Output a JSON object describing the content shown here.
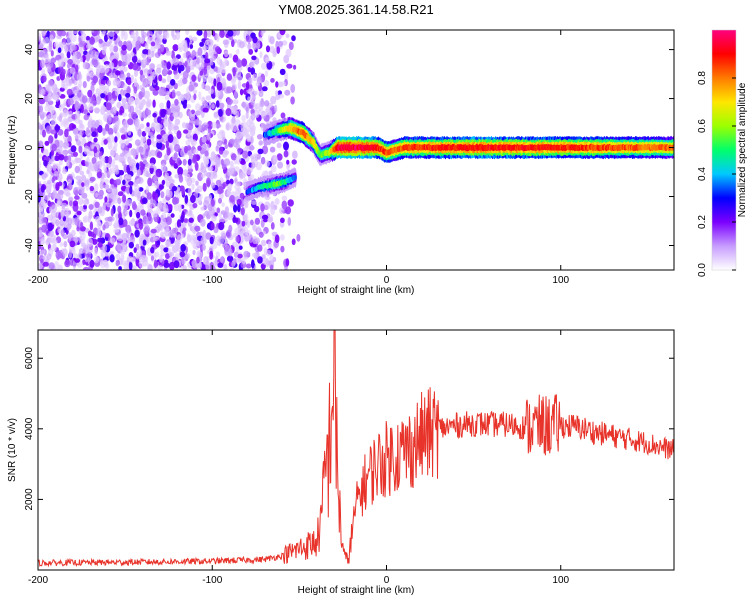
{
  "title": "YM08.2025.361.14.58.R21",
  "chart_data": [
    {
      "type": "heatmap",
      "title": "YM08.2025.361.14.58.R21",
      "xlabel": "Height of straight line (km)",
      "ylabel": "Frequency (Hz)",
      "xlim": [
        -200,
        165
      ],
      "ylim": [
        -50,
        48
      ],
      "x_ticks": [
        -200,
        -100,
        0,
        100
      ],
      "y_ticks": [
        -40,
        -20,
        0,
        20,
        40
      ],
      "colorbar": {
        "label": "Normalized spectral amplitude",
        "range": [
          0.0,
          1.0
        ],
        "ticks": [
          0.0,
          0.2,
          0.4,
          0.6,
          0.8
        ],
        "colormap": [
          "#ffffff",
          "#c79cff",
          "#7b00ff",
          "#0000ff",
          "#00c8ff",
          "#00ff6a",
          "#9cff00",
          "#ffe600",
          "#ff7a00",
          "#ff0000",
          "#ff0080"
        ]
      },
      "noise_region": {
        "x_range": [
          -200,
          -60
        ],
        "y_range": [
          -50,
          48
        ],
        "amplitude_range": [
          0.05,
          0.25
        ]
      },
      "signal_track": [
        {
          "x": -70,
          "y": 5,
          "amp": 0.3
        },
        {
          "x": -62,
          "y": 7,
          "amp": 0.55
        },
        {
          "x": -55,
          "y": 8,
          "amp": 0.75
        },
        {
          "x": -48,
          "y": 6,
          "amp": 0.85
        },
        {
          "x": -42,
          "y": 2,
          "amp": 0.7
        },
        {
          "x": -38,
          "y": -3,
          "amp": 0.55
        },
        {
          "x": -33,
          "y": -2,
          "amp": 0.6
        },
        {
          "x": -28,
          "y": 0,
          "amp": 0.95
        },
        {
          "x": -15,
          "y": 0,
          "amp": 0.95
        },
        {
          "x": -5,
          "y": 0,
          "amp": 0.9
        },
        {
          "x": 0,
          "y": -2,
          "amp": 0.85
        },
        {
          "x": 5,
          "y": -1,
          "amp": 0.8
        },
        {
          "x": 10,
          "y": 0,
          "amp": 0.85
        },
        {
          "x": 50,
          "y": 0,
          "amp": 0.9
        },
        {
          "x": 100,
          "y": 0,
          "amp": 0.88
        },
        {
          "x": 165,
          "y": 0,
          "amp": 0.8
        }
      ],
      "secondary_track": [
        {
          "x": -80,
          "y": -18,
          "amp": 0.3
        },
        {
          "x": -72,
          "y": -16,
          "amp": 0.45
        },
        {
          "x": -64,
          "y": -15,
          "amp": 0.55
        },
        {
          "x": -58,
          "y": -14,
          "amp": 0.5
        },
        {
          "x": -52,
          "y": -12,
          "amp": 0.35
        }
      ]
    },
    {
      "type": "line",
      "xlabel": "Height of straight line (km)",
      "ylabel": "SNR (10 * v/v)",
      "xlim": [
        -200,
        165
      ],
      "ylim": [
        0,
        6800
      ],
      "x_ticks": [
        -200,
        -100,
        0,
        100
      ],
      "y_ticks": [
        2000,
        4000,
        6000
      ],
      "series": [
        {
          "name": "SNR",
          "color": "#e8332a",
          "x": [
            -200,
            -150,
            -100,
            -70,
            -60,
            -50,
            -45,
            -40,
            -37,
            -35,
            -33,
            -31,
            -30,
            -29,
            -28,
            -26,
            -24,
            -22,
            -20,
            -18,
            -15,
            -10,
            -5,
            0,
            5,
            10,
            15,
            20,
            25,
            30,
            40,
            50,
            60,
            70,
            80,
            90,
            100,
            110,
            120,
            130,
            140,
            150,
            160,
            165
          ],
          "values": [
            200,
            220,
            250,
            300,
            400,
            600,
            700,
            800,
            1500,
            2900,
            3300,
            5200,
            6400,
            4200,
            2600,
            1000,
            350,
            300,
            900,
            1700,
            2200,
            2700,
            3000,
            3150,
            3300,
            3350,
            3500,
            3750,
            3850,
            4000,
            4100,
            4150,
            4120,
            4120,
            4050,
            4080,
            4100,
            4050,
            3900,
            3800,
            3700,
            3600,
            3450,
            3400
          ]
        }
      ]
    }
  ]
}
